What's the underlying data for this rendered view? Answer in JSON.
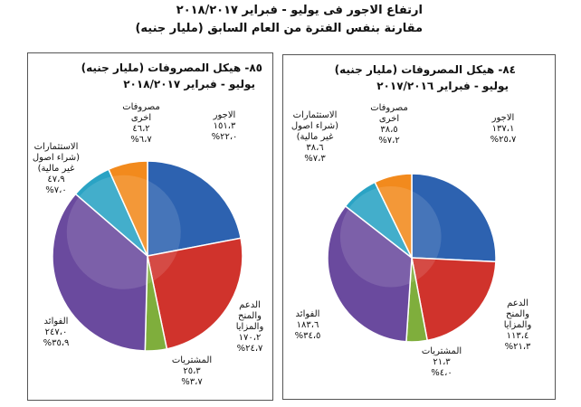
{
  "header": {
    "title": "ارتفاع الاجور فى يوليو - فبراير ٢٠١٨/٢٠١٧",
    "subtitle": "مقارنة بنفس الفترة من العام السابق (مليار جنيه)"
  },
  "chart_data": [
    {
      "type": "pie",
      "title": "٨٥- هيكل المصروفات (مليار جنيه)",
      "subtitle": "يوليو - فبراير ٢٠١٨/٢٠١٧",
      "categories": [
        "الاجور",
        "الدعم\nوالمنح\nوالمزايا",
        "المشتريات",
        "الفوائد",
        "الاستثمارات\n(شراء اصول\nغير مالية)",
        "مصروفات\nاخرى"
      ],
      "values": [
        151.3,
        170.2,
        25.3,
        247.0,
        47.9,
        46.2
      ],
      "value_labels": [
        "١٥١،٣",
        "١٧٠،٢",
        "٢٥،٣",
        "٢٤٧،٠",
        "٤٧،٩",
        "٤٦،٢"
      ],
      "percentages": [
        22.0,
        24.7,
        3.7,
        35.9,
        7.0,
        6.7
      ],
      "percentage_labels": [
        "٢٢،٠%",
        "٢٤،٧%",
        "٣،٧%",
        "٣٥،٩%",
        "٧،٠%",
        "٦،٧%"
      ],
      "colors": [
        "#2d62b0",
        "#d0332c",
        "#7fae3c",
        "#6a4a9e",
        "#2aa3c4",
        "#f28a1d"
      ]
    },
    {
      "type": "pie",
      "title": "٨٤- هيكل المصروفات (مليار جنيه)",
      "subtitle": "يوليو - فبراير ٢٠١٧/٢٠١٦",
      "categories": [
        "الاجور",
        "الدعم\nوالمنح\nوالمزايا",
        "المشتريات",
        "الفوائد",
        "الاستثمارات\n(شراء اصول\nغير مالية)",
        "مصروفات\nاخرى"
      ],
      "values": [
        137.1,
        113.4,
        21.3,
        183.6,
        38.6,
        38.5
      ],
      "value_labels": [
        "١٣٧،١",
        "١١٣،٤",
        "٢١،٣",
        "١٨٣،٦",
        "٣٨،٦",
        "٣٨،٥"
      ],
      "percentages": [
        25.7,
        21.3,
        4.0,
        34.5,
        7.3,
        7.2
      ],
      "percentage_labels": [
        "٢٥،٧%",
        "٢١،٣%",
        "٤،٠%",
        "٣٤،٥%",
        "٧،٣%",
        "٧،٢%"
      ],
      "colors": [
        "#2d62b0",
        "#d0332c",
        "#7fae3c",
        "#6a4a9e",
        "#2aa3c4",
        "#f28a1d"
      ]
    }
  ]
}
